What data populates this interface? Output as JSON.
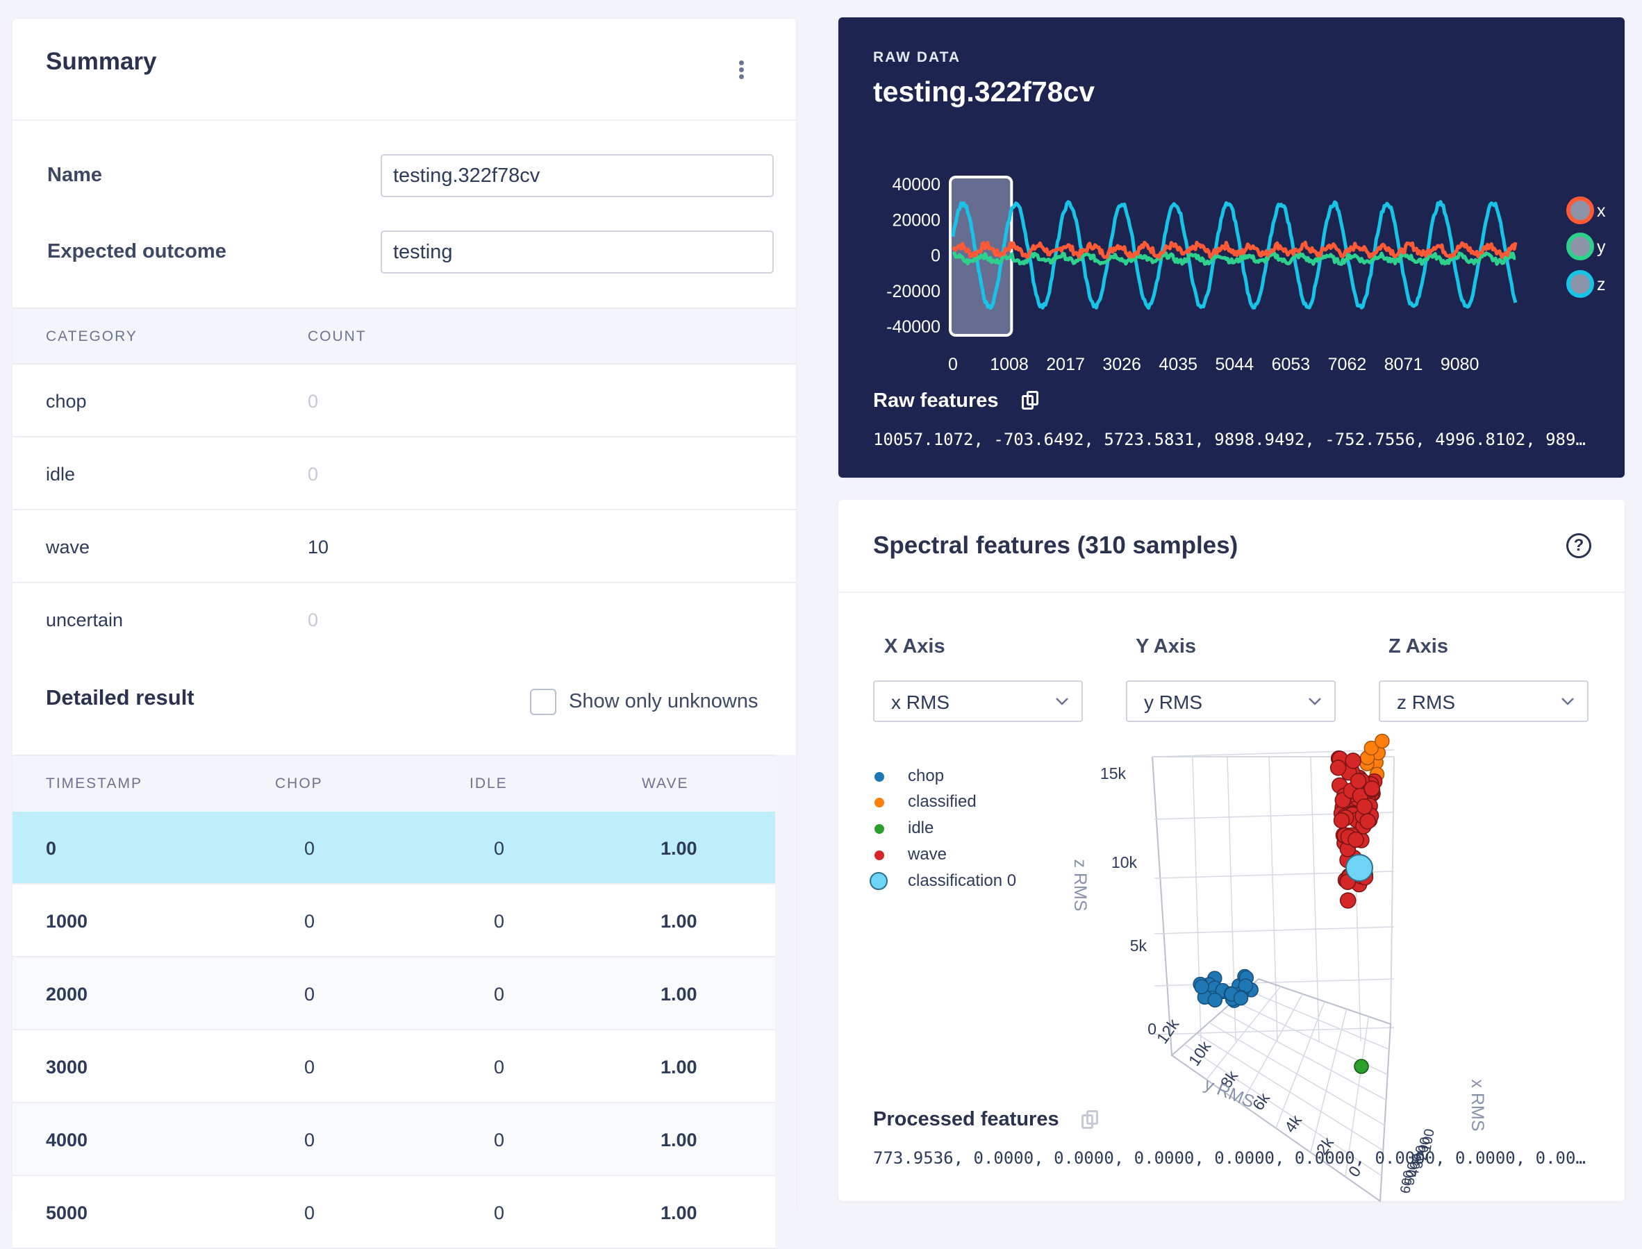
{
  "summary": {
    "title": "Summary",
    "name_label": "Name",
    "name_value": "testing.322f78cv",
    "outcome_label": "Expected outcome",
    "outcome_value": "testing",
    "col_category": "CATEGORY",
    "col_count": "COUNT",
    "categories": [
      {
        "name": "chop",
        "count": "0"
      },
      {
        "name": "idle",
        "count": "0"
      },
      {
        "name": "wave",
        "count": "10"
      },
      {
        "name": "uncertain",
        "count": "0"
      }
    ],
    "detailed_title": "Detailed result",
    "show_unknowns_label": "Show only unknowns",
    "result_headers": [
      "TIMESTAMP",
      "CHOP",
      "IDLE",
      "WAVE"
    ],
    "results": [
      {
        "ts": "0",
        "chop": "0",
        "idle": "0",
        "wave": "1.00"
      },
      {
        "ts": "1000",
        "chop": "0",
        "idle": "0",
        "wave": "1.00"
      },
      {
        "ts": "2000",
        "chop": "0",
        "idle": "0",
        "wave": "1.00"
      },
      {
        "ts": "3000",
        "chop": "0",
        "idle": "0",
        "wave": "1.00"
      },
      {
        "ts": "4000",
        "chop": "0",
        "idle": "0",
        "wave": "1.00"
      },
      {
        "ts": "5000",
        "chop": "0",
        "idle": "0",
        "wave": "1.00"
      }
    ]
  },
  "raw": {
    "kicker": "RAW DATA",
    "title": "testing.322f78cv",
    "features_label": "Raw features",
    "features_values": "10057.1072, -703.6492, 5723.5831, 9898.9492, -752.7556, 4996.8102, 989…"
  },
  "spectral": {
    "title": "Spectral features (310 samples)",
    "x_axis_label": "X Axis",
    "y_axis_label": "Y Axis",
    "z_axis_label": "Z Axis",
    "x_axis_value": "x RMS",
    "y_axis_value": "y RMS",
    "z_axis_value": "z RMS",
    "processed_label": "Processed features",
    "processed_values": "773.9536, 0.0000, 0.0000, 0.0000, 0.0000, 0.0000, 0.0000, 0.0000, 0.00…"
  },
  "chart_data": [
    {
      "type": "line",
      "x_ticks": [
        "0",
        "1008",
        "2017",
        "3026",
        "4035",
        "5044",
        "6053",
        "7062",
        "8071",
        "9080"
      ],
      "y_ticks": [
        "40000",
        "20000",
        "0",
        "-20000",
        "-40000"
      ],
      "xlim": [
        0,
        10080
      ],
      "ylim": [
        -40000,
        40000
      ],
      "legend_position": "right",
      "series": [
        {
          "name": "x",
          "color": "#ff5a36",
          "pattern": "noisy oscillation around 0",
          "approx_mean": 3000,
          "approx_amplitude": 4000
        },
        {
          "name": "y",
          "color": "#2ed18b",
          "pattern": "noisy oscillation around 0",
          "approx_mean": -2000,
          "approx_amplitude": 3000
        },
        {
          "name": "z",
          "color": "#17c3e6",
          "pattern": "sinusoid, ~1 cycle per 950 samples",
          "approx_mean": 0,
          "approx_amplitude": 29000
        }
      ],
      "highlight_window": [
        0,
        1000
      ]
    },
    {
      "type": "scatter",
      "dimensions": 3,
      "xlabel": "x RMS",
      "ylabel": "y RMS",
      "zlabel": "z RMS",
      "z_ticks": [
        "0",
        "5k",
        "10k",
        "15k"
      ],
      "y_ticks": [
        "12k",
        "10k",
        "8k",
        "6k",
        "4k",
        "2k",
        "0"
      ],
      "legend": [
        {
          "name": "chop",
          "color": "#1f77b4"
        },
        {
          "name": "classified",
          "color": "#ff7f0e"
        },
        {
          "name": "idle",
          "color": "#2ca02c"
        },
        {
          "name": "wave",
          "color": "#d62728"
        },
        {
          "name": "classification 0",
          "color": "#6fd3f5"
        }
      ],
      "clusters": [
        {
          "name": "chop",
          "approx_y_rms": 10000,
          "approx_z_rms": 2000
        },
        {
          "name": "idle",
          "approx_y_rms": 0,
          "approx_z_rms": 0
        },
        {
          "name": "wave",
          "approx_z_rms_range": [
            7000,
            15000
          ]
        },
        {
          "name": "classification 0",
          "approx_z_rms": 10000
        }
      ]
    }
  ]
}
